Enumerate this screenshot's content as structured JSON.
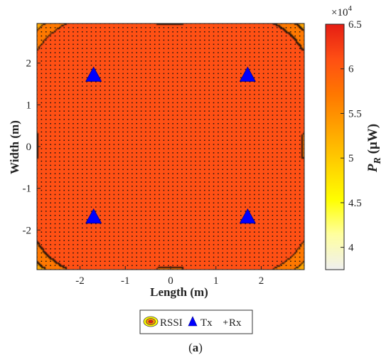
{
  "chart_data": {
    "type": "heatmap",
    "subtype": "filled-contour",
    "title": "",
    "xlabel": "Length (m)",
    "ylabel": "Width (m)",
    "xlim": [
      -2.95,
      2.95
    ],
    "ylim": [
      -2.95,
      2.95
    ],
    "xticks": [
      "-2",
      "-1",
      "0",
      "1",
      "2"
    ],
    "xtick_values": [
      -2,
      -1,
      0,
      1,
      2
    ],
    "yticks": [
      "2",
      "1",
      "0",
      "-1",
      "-2"
    ],
    "ytick_values": [
      2,
      1,
      0,
      -1,
      -2
    ],
    "grid": false,
    "colorbar": {
      "label_main": "P",
      "label_sub": "R",
      "label_unit": " (μW)",
      "exponent": "×10",
      "exponent_power": "4",
      "range": [
        3.75,
        6.5
      ],
      "ticks": [
        "6.5",
        "6",
        "5.5",
        "5",
        "4.5",
        "4"
      ],
      "tick_values": [
        6.5,
        6.0,
        5.5,
        5.0,
        4.5,
        4.0
      ],
      "colormap": [
        "#f0f0f0",
        "#ffffa0",
        "#ffff00",
        "#ffd200",
        "#ffa500",
        "#ff7800",
        "#ff5014",
        "#e61e14"
      ]
    },
    "contour_levels": [
      4.25,
      4.75,
      5.2,
      5.6,
      6.1
    ],
    "transmitters": [
      {
        "x": -1.7,
        "y": 1.7
      },
      {
        "x": 1.7,
        "y": 1.7
      },
      {
        "x": -1.7,
        "y": -1.7
      },
      {
        "x": 1.7,
        "y": -1.7
      }
    ],
    "receivers_grid": {
      "start": -2.95,
      "end": 2.95,
      "step": 0.1
    },
    "legend": {
      "position": "bottom-center",
      "entries": [
        "RSSI",
        "Tx",
        "Rx"
      ]
    },
    "caption_open": "(",
    "caption_letter": "a",
    "caption_close": ")",
    "tx_color": "#0000ff"
  }
}
